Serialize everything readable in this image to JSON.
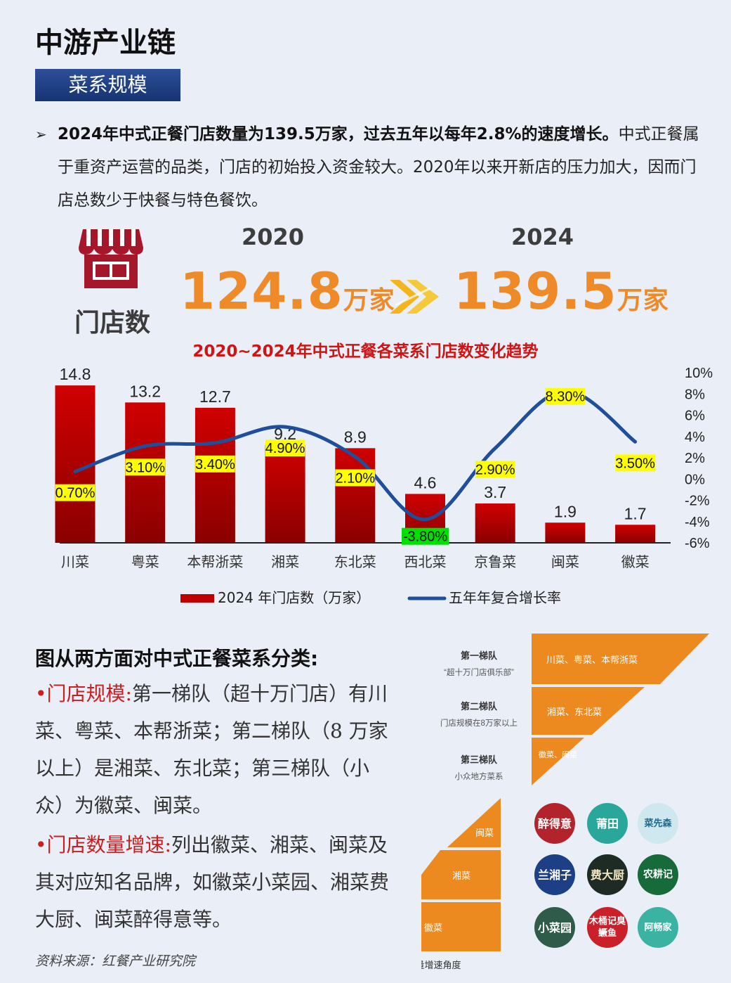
{
  "header": {
    "title": "中游产业链",
    "section": "菜系规模"
  },
  "intro": {
    "bullet": "➢",
    "bold": "2024年中式正餐门店数量为139.5万家，过去五年以每年2.8%的速度增长。",
    "rest": "中式正餐属于重资产运营的品类，门店的初始投入资金较大。2020年以来开新店的压力加大，因而门店总数少于快餐与特色餐饮。"
  },
  "stores": {
    "label": "门店数",
    "year_a": "2020",
    "value_a": "124.8",
    "unit_a": "万家",
    "year_b": "2024",
    "value_b": "139.5",
    "unit_b": "万家",
    "icon": "store-icon",
    "arrow_icon": "double-chevron-right-icon"
  },
  "chart_data": {
    "type": "bar",
    "title": "2020~2024年中式正餐各菜系门店数变化趋势",
    "categories": [
      "川菜",
      "粤菜",
      "本帮浙菜",
      "湘菜",
      "东北菜",
      "西北菜",
      "京鲁菜",
      "闽菜",
      "徽菜"
    ],
    "series": [
      {
        "name": "2024 年门店数（万家）",
        "type": "bar",
        "axis": "left",
        "values": [
          14.8,
          13.2,
          12.7,
          9.2,
          8.9,
          4.6,
          3.7,
          1.9,
          1.7
        ],
        "color": "#c00000"
      },
      {
        "name": "五年年复合增长率",
        "type": "line",
        "axis": "right",
        "values": [
          0.7,
          3.1,
          3.4,
          4.9,
          2.1,
          -3.8,
          2.9,
          8.3,
          3.5
        ],
        "labels": [
          "0.70%",
          "3.10%",
          "3.40%",
          "4.90%",
          "2.10%",
          "-3.80%",
          "2.90%",
          "8.30%",
          "3.50%"
        ],
        "color": "#1f4e9a"
      }
    ],
    "y_left_lim": [
      0,
      16
    ],
    "y_right_lim": [
      -6,
      10
    ],
    "y_right_ticks": [
      "10%",
      "8%",
      "6%",
      "4%",
      "2%",
      "0%",
      "-2%",
      "-4%",
      "-6%"
    ],
    "legend_position": "bottom",
    "grid": false
  },
  "tiers": {
    "heading": "图从两方面对中式正餐菜系分类:",
    "scale_key": "•门店规模:",
    "scale_text": "第一梯队（超十万门店）有川菜、粤菜、本帮浙菜；第二梯队（8 万家以上）是湘菜、东北菜；第三梯队（小众）为徽菜、闽菜。",
    "growth_key": "•门店数量增速:",
    "growth_text": "列出徽菜、湘菜、闽菜及其对应知名品牌，如徽菜小菜园、湘菜费大厨、闽菜醉得意等。",
    "source": "资料来源：红餐产业研究院",
    "diagram": {
      "tier1_title": "第一梯队",
      "tier1_sub": "“超十万门店俱乐部”",
      "tier1_items": "川菜、粤菜、本帮浙菜",
      "tier2_title": "第二梯队",
      "tier2_sub": "门店规模在8万家以上",
      "tier2_items": "湘菜、东北菜",
      "tier3_title": "第三梯队",
      "tier3_sub": "小众地方菜系",
      "tier3_items": "徽菜、闽菜",
      "growth_levels": [
        "闽菜",
        "湘菜",
        "徽菜"
      ],
      "growth_caption": "从门店数量增速角度",
      "brands": [
        "醉得意",
        "莆田",
        "菜先森",
        "兰湘子",
        "费大厨",
        "农耕记",
        "小菜园",
        "木桶记臭鳜鱼",
        "阿畅家"
      ]
    }
  },
  "colors": {
    "accent_orange": "#ef8a28",
    "bar_red": "#c00000",
    "line_blue": "#1f4e9a",
    "label_yellow": "#ffff00",
    "label_green": "#00e000",
    "title_red": "#d01414"
  }
}
